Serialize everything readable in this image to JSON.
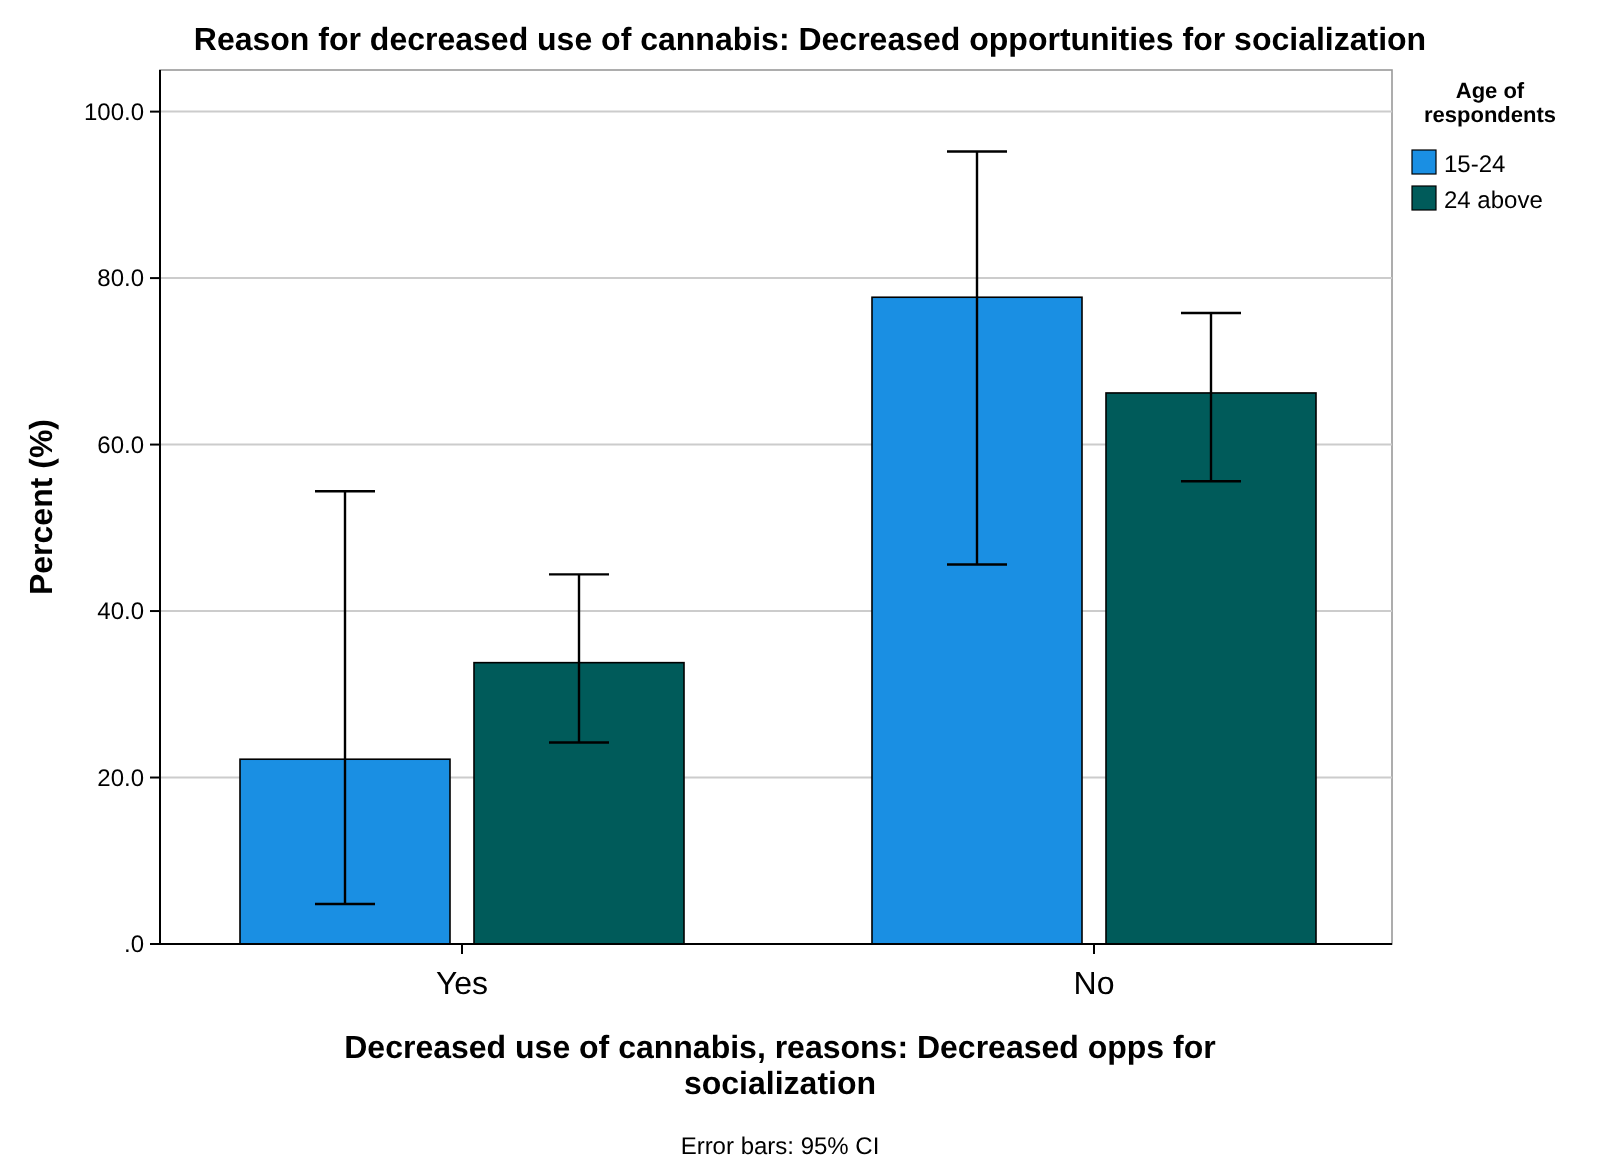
{
  "chart_data": {
    "type": "bar",
    "title": "Reason for decreased use of cannabis: Decreased opportunities for socialization",
    "xlabel": "Decreased use of cannabis, reasons: Decreased opps for socialization",
    "ylabel": "Percent (%)",
    "legend_title": "Age of respondents",
    "categories": [
      "Yes",
      "No"
    ],
    "series": [
      {
        "name": "15-24",
        "color": "#1a8fe3",
        "values": [
          22.2,
          77.7
        ],
        "errors": [
          [
            4.8,
            54.4
          ],
          [
            45.6,
            95.2
          ]
        ]
      },
      {
        "name": "24 above",
        "color": "#005b5a",
        "values": [
          33.8,
          66.2
        ],
        "errors": [
          [
            24.2,
            44.4
          ],
          [
            55.6,
            75.8
          ]
        ]
      }
    ],
    "ylim": [
      0,
      105
    ],
    "yticks": [
      {
        "value": 0,
        "label": ".0"
      },
      {
        "value": 20,
        "label": "20.0"
      },
      {
        "value": 40,
        "label": "40.0"
      },
      {
        "value": 60,
        "label": "60.0"
      },
      {
        "value": 80,
        "label": "80.0"
      },
      {
        "value": 100,
        "label": "100.0"
      }
    ],
    "grid": "y",
    "legend": "top right",
    "annotations": [
      "Error bars: 95% CI"
    ]
  }
}
